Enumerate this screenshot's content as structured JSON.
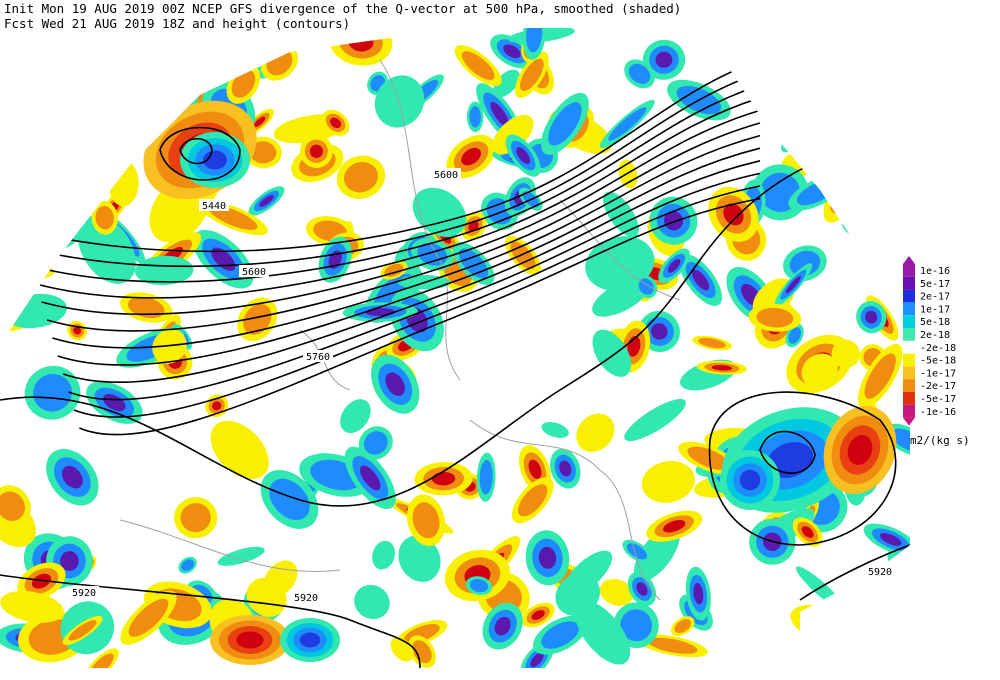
{
  "header": {
    "line1": "Init  Mon 19 AUG 2019 00Z  NCEP GFS divergence of the Q-vector at 500 hPa, smoothed (shaded)",
    "line2": "Fcst Wed 21 AUG 2019 18Z  and height (contours)"
  },
  "contour_labels": [
    "5440",
    "5600",
    "5600",
    "5760",
    "5920",
    "5920",
    "5920"
  ],
  "legend": {
    "labels": [
      "1e-16",
      "5e-17",
      "2e-17",
      "1e-17",
      "5e-18",
      "2e-18",
      "-2e-18",
      "-5e-18",
      "-1e-17",
      "-2e-17",
      "-5e-17",
      "-1e-16"
    ],
    "unit": "m2/(kg s)"
  }
}
